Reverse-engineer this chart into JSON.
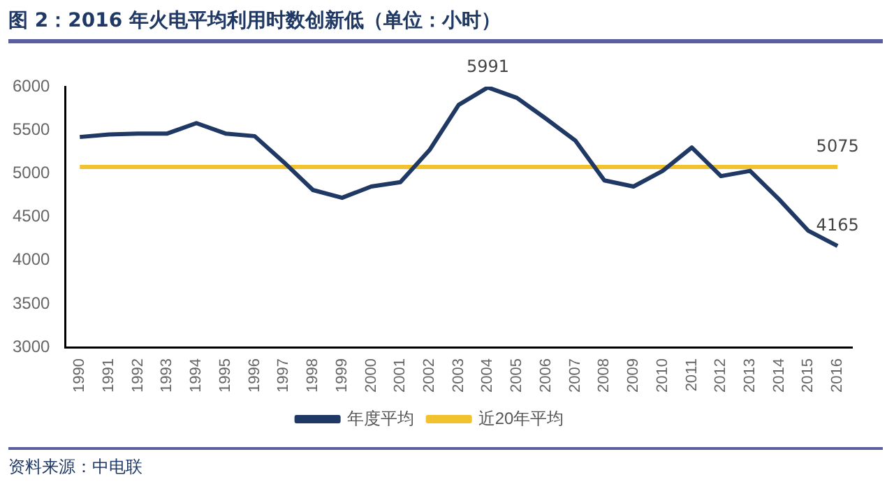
{
  "chart_data": {
    "type": "line",
    "title": "图 2：2016 年火电平均利用时数创新低（单位：小时）",
    "categories": [
      "1990",
      "1991",
      "1992",
      "1993",
      "1994",
      "1995",
      "1996",
      "1997",
      "1998",
      "1999",
      "2000",
      "2001",
      "2002",
      "2003",
      "2004",
      "2005",
      "2006",
      "2007",
      "2008",
      "2009",
      "2010",
      "2011",
      "2012",
      "2013",
      "2014",
      "2015",
      "2016"
    ],
    "series": [
      {
        "name": "年度平均",
        "color": "#1f3864",
        "values": [
          5420,
          5450,
          5460,
          5460,
          5580,
          5460,
          5430,
          5130,
          4810,
          4720,
          4850,
          4900,
          5270,
          5790,
          5991,
          5870,
          5630,
          5380,
          4920,
          4850,
          5030,
          5300,
          4970,
          5030,
          4700,
          4340,
          4165
        ],
        "value_labels": [
          null,
          null,
          null,
          null,
          null,
          null,
          null,
          null,
          null,
          null,
          null,
          null,
          null,
          null,
          "5991",
          null,
          null,
          null,
          null,
          null,
          null,
          null,
          null,
          null,
          null,
          null,
          "4165"
        ]
      },
      {
        "name": "近20年平均",
        "color": "#f2c12e",
        "values": [
          5075,
          5075,
          5075,
          5075,
          5075,
          5075,
          5075,
          5075,
          5075,
          5075,
          5075,
          5075,
          5075,
          5075,
          5075,
          5075,
          5075,
          5075,
          5075,
          5075,
          5075,
          5075,
          5075,
          5075,
          5075,
          5075,
          5075
        ],
        "value_labels": [
          null,
          null,
          null,
          null,
          null,
          null,
          null,
          null,
          null,
          null,
          null,
          null,
          null,
          null,
          null,
          null,
          null,
          null,
          null,
          null,
          null,
          null,
          null,
          null,
          null,
          null,
          "5075"
        ]
      }
    ],
    "ylim": [
      3000,
      6000
    ],
    "yticks": [
      3000,
      3500,
      4000,
      4500,
      5000,
      5500,
      6000
    ],
    "grid": false,
    "legend": "bottom",
    "marker": "none",
    "line_style": "solid",
    "annotations": [
      "资料来源：中电联"
    ]
  }
}
